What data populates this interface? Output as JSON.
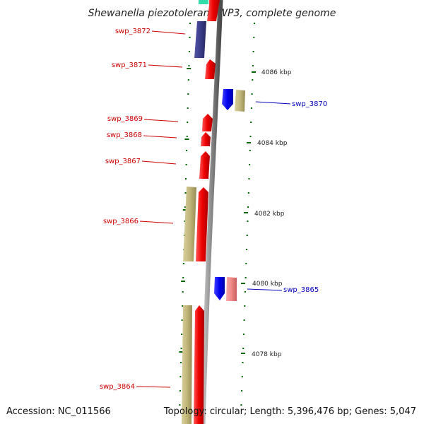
{
  "title": "Shewanella piezotolerans WP3, complete genome",
  "footer": {
    "accession": "Accession: NC_011566",
    "topology": "Topology: circular; Length: 5,396,476 bp; Genes: 5,047"
  },
  "colors": {
    "forward_gene": "#ee0000",
    "reverse_gene": "#0000ee",
    "forward_label": "#cc0000",
    "reverse_label": "#0000bb",
    "cds_band": "#c9be82",
    "reverse_cds_band": "#f28a8a",
    "other_band": "#3c3c8c",
    "top_feature": "#33ddaa",
    "backbone": "#8a8a8a",
    "tick": "#006600"
  },
  "scale": {
    "unit": "kbp",
    "labeled_ticks": [
      {
        "label": "4086 kbp"
      },
      {
        "label": "4084 kbp"
      },
      {
        "label": "4082 kbp"
      },
      {
        "label": "4080 kbp"
      },
      {
        "label": "4078 kbp"
      }
    ]
  },
  "genes": [
    {
      "name": "swp_3872",
      "strand": "forward"
    },
    {
      "name": "swp_3871",
      "strand": "forward"
    },
    {
      "name": "swp_3870",
      "strand": "reverse"
    },
    {
      "name": "swp_3869",
      "strand": "forward"
    },
    {
      "name": "swp_3868",
      "strand": "forward"
    },
    {
      "name": "swp_3867",
      "strand": "forward"
    },
    {
      "name": "swp_3866",
      "strand": "forward"
    },
    {
      "name": "swp_3865",
      "strand": "reverse"
    },
    {
      "name": "swp_3864",
      "strand": "forward"
    }
  ]
}
